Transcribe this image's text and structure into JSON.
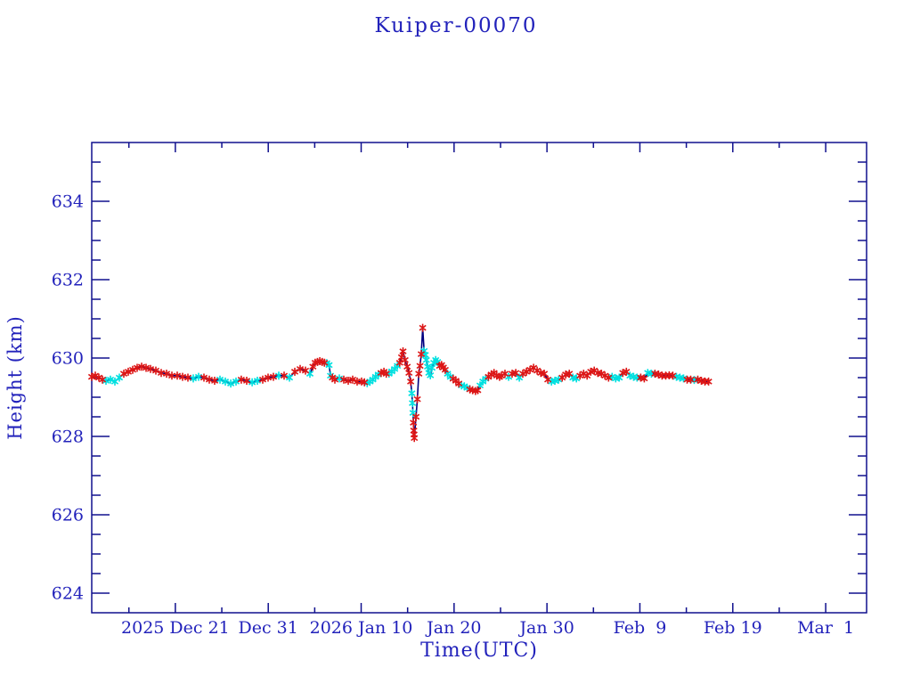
{
  "title": "Kuiper-00070",
  "colors": {
    "text": "#2222bb",
    "axis": "#10108e",
    "line": "#000080",
    "marker_red": "#dc1616",
    "marker_cyan": "#00e0e0",
    "background": "#ffffff"
  },
  "chart_data": {
    "type": "line",
    "title": "Kuiper-00070",
    "xlabel": "Time(UTC)",
    "ylabel": "Height (km)",
    "marker": "asterisk",
    "grid": false,
    "legend": "none",
    "x_axis": {
      "unit": "days since 2025-12-12 (axis left edge)",
      "min": 0,
      "max": 83.4,
      "major_ticks": [
        {
          "day": 9,
          "label": "2025 Dec 21"
        },
        {
          "day": 19,
          "label": "Dec 31"
        },
        {
          "day": 29,
          "label": "2026 Jan 10"
        },
        {
          "day": 39,
          "label": "Jan 20"
        },
        {
          "day": 49,
          "label": "Jan 30"
        },
        {
          "day": 59,
          "label": "Feb  9"
        },
        {
          "day": 69,
          "label": "Feb 19"
        },
        {
          "day": 79,
          "label": "Mar  1"
        }
      ],
      "minor_tick_days": [
        4,
        14,
        24,
        34,
        44,
        54,
        64,
        74
      ]
    },
    "y_axis": {
      "min": 623.5,
      "max": 635.5,
      "major_ticks": [
        624,
        626,
        628,
        630,
        632,
        634
      ],
      "minor_step": 0.5
    },
    "points": [
      [
        0.0,
        629.52,
        "r"
      ],
      [
        0.38,
        629.55,
        "r"
      ],
      [
        0.77,
        629.5,
        "r"
      ],
      [
        1.15,
        629.45,
        "r"
      ],
      [
        1.53,
        629.42,
        "c"
      ],
      [
        2.01,
        629.45,
        "c"
      ],
      [
        2.49,
        629.4,
        "c"
      ],
      [
        2.97,
        629.5,
        "c"
      ],
      [
        3.45,
        629.6,
        "r"
      ],
      [
        3.93,
        629.65,
        "r"
      ],
      [
        4.41,
        629.7,
        "r"
      ],
      [
        4.89,
        629.75,
        "r"
      ],
      [
        5.37,
        629.78,
        "r"
      ],
      [
        5.85,
        629.75,
        "r"
      ],
      [
        6.33,
        629.72,
        "r"
      ],
      [
        6.9,
        629.68,
        "r"
      ],
      [
        7.48,
        629.62,
        "r"
      ],
      [
        8.05,
        629.6,
        "r"
      ],
      [
        8.63,
        629.55,
        "r"
      ],
      [
        9.2,
        629.55,
        "r"
      ],
      [
        9.78,
        629.52,
        "r"
      ],
      [
        10.35,
        629.5,
        "r"
      ],
      [
        10.93,
        629.48,
        "c"
      ],
      [
        11.5,
        629.52,
        "c"
      ],
      [
        12.08,
        629.5,
        "r"
      ],
      [
        12.65,
        629.45,
        "r"
      ],
      [
        13.23,
        629.42,
        "r"
      ],
      [
        13.8,
        629.45,
        "c"
      ],
      [
        14.38,
        629.4,
        "c"
      ],
      [
        14.96,
        629.35,
        "c"
      ],
      [
        15.53,
        629.4,
        "c"
      ],
      [
        16.1,
        629.45,
        "r"
      ],
      [
        16.68,
        629.42,
        "r"
      ],
      [
        17.26,
        629.38,
        "c"
      ],
      [
        17.83,
        629.42,
        "c"
      ],
      [
        18.41,
        629.45,
        "r"
      ],
      [
        18.98,
        629.5,
        "r"
      ],
      [
        19.56,
        629.52,
        "r"
      ],
      [
        20.13,
        629.55,
        "c"
      ],
      [
        20.71,
        629.55,
        "r"
      ],
      [
        21.28,
        629.5,
        "c"
      ],
      [
        21.86,
        629.65,
        "r"
      ],
      [
        22.43,
        629.72,
        "r"
      ],
      [
        23.01,
        629.68,
        "r"
      ],
      [
        23.49,
        629.6,
        "c"
      ],
      [
        23.8,
        629.78,
        "r"
      ],
      [
        24.05,
        629.88,
        "r"
      ],
      [
        24.3,
        629.9,
        "r"
      ],
      [
        24.55,
        629.92,
        "r"
      ],
      [
        24.8,
        629.9,
        "r"
      ],
      [
        25.05,
        629.88,
        "r"
      ],
      [
        25.3,
        629.87,
        "c"
      ],
      [
        25.55,
        629.82,
        "c"
      ],
      [
        25.7,
        629.55,
        "c"
      ],
      [
        25.9,
        629.5,
        "r"
      ],
      [
        26.17,
        629.45,
        "r"
      ],
      [
        26.65,
        629.48,
        "c"
      ],
      [
        27.13,
        629.45,
        "r"
      ],
      [
        27.61,
        629.42,
        "r"
      ],
      [
        28.09,
        629.45,
        "r"
      ],
      [
        28.57,
        629.4,
        "r"
      ],
      [
        29.05,
        629.4,
        "r"
      ],
      [
        29.35,
        629.38,
        "r"
      ],
      [
        29.65,
        629.36,
        "c"
      ],
      [
        29.95,
        629.4,
        "c"
      ],
      [
        30.25,
        629.45,
        "c"
      ],
      [
        30.55,
        629.52,
        "c"
      ],
      [
        30.85,
        629.58,
        "c"
      ],
      [
        31.15,
        629.62,
        "r"
      ],
      [
        31.45,
        629.65,
        "r"
      ],
      [
        31.7,
        629.6,
        "r"
      ],
      [
        32.0,
        629.6,
        "c"
      ],
      [
        32.3,
        629.66,
        "c"
      ],
      [
        32.6,
        629.72,
        "c"
      ],
      [
        32.9,
        629.8,
        "c"
      ],
      [
        33.15,
        629.88,
        "r"
      ],
      [
        33.35,
        630.02,
        "r"
      ],
      [
        33.5,
        630.17,
        "r"
      ],
      [
        33.72,
        629.95,
        "r"
      ],
      [
        33.95,
        629.78,
        "r"
      ],
      [
        34.15,
        629.62,
        "r"
      ],
      [
        34.33,
        629.4,
        "r"
      ],
      [
        34.45,
        629.1,
        "c"
      ],
      [
        34.52,
        628.85,
        "c"
      ],
      [
        34.58,
        628.6,
        "c"
      ],
      [
        34.63,
        628.35,
        "r"
      ],
      [
        34.66,
        628.15,
        "r"
      ],
      [
        34.69,
        628.05,
        "r"
      ],
      [
        34.72,
        627.96,
        "r"
      ],
      [
        34.9,
        628.5,
        "r"
      ],
      [
        35.05,
        628.95,
        "r"
      ],
      [
        35.2,
        629.6,
        "r"
      ],
      [
        35.33,
        629.8,
        "r"
      ],
      [
        35.47,
        630.1,
        "r"
      ],
      [
        35.62,
        630.77,
        "r"
      ],
      [
        35.78,
        630.18,
        "c"
      ],
      [
        35.9,
        630.08,
        "c"
      ],
      [
        36.02,
        629.95,
        "c"
      ],
      [
        36.15,
        629.78,
        "c"
      ],
      [
        36.28,
        629.62,
        "c"
      ],
      [
        36.45,
        629.56,
        "c"
      ],
      [
        36.62,
        629.75,
        "c"
      ],
      [
        36.82,
        629.88,
        "c"
      ],
      [
        37.02,
        629.95,
        "c"
      ],
      [
        37.22,
        629.9,
        "c"
      ],
      [
        37.45,
        629.8,
        "r"
      ],
      [
        37.65,
        629.82,
        "r"
      ],
      [
        37.85,
        629.76,
        "r"
      ],
      [
        38.05,
        629.7,
        "r"
      ],
      [
        38.3,
        629.6,
        "c"
      ],
      [
        38.6,
        629.52,
        "c"
      ],
      [
        38.9,
        629.47,
        "r"
      ],
      [
        39.2,
        629.42,
        "r"
      ],
      [
        39.5,
        629.35,
        "r"
      ],
      [
        39.8,
        629.3,
        "c"
      ],
      [
        40.1,
        629.28,
        "c"
      ],
      [
        40.4,
        629.24,
        "c"
      ],
      [
        40.7,
        629.2,
        "r"
      ],
      [
        41.0,
        629.18,
        "r"
      ],
      [
        41.3,
        629.16,
        "r"
      ],
      [
        41.55,
        629.18,
        "r"
      ],
      [
        41.8,
        629.3,
        "c"
      ],
      [
        42.1,
        629.4,
        "c"
      ],
      [
        42.4,
        629.47,
        "c"
      ],
      [
        42.7,
        629.52,
        "r"
      ],
      [
        43.0,
        629.58,
        "r"
      ],
      [
        43.3,
        629.62,
        "r"
      ],
      [
        43.6,
        629.55,
        "r"
      ],
      [
        43.9,
        629.52,
        "r"
      ],
      [
        44.1,
        629.55,
        "r"
      ],
      [
        44.48,
        629.6,
        "r"
      ],
      [
        44.87,
        629.52,
        "c"
      ],
      [
        45.25,
        629.6,
        "r"
      ],
      [
        45.64,
        629.62,
        "r"
      ],
      [
        46.02,
        629.5,
        "c"
      ],
      [
        46.4,
        629.6,
        "r"
      ],
      [
        46.79,
        629.65,
        "r"
      ],
      [
        47.17,
        629.7,
        "r"
      ],
      [
        47.56,
        629.75,
        "r"
      ],
      [
        47.94,
        629.68,
        "r"
      ],
      [
        48.33,
        629.62,
        "r"
      ],
      [
        48.71,
        629.6,
        "r"
      ],
      [
        49.09,
        629.45,
        "r"
      ],
      [
        49.48,
        629.4,
        "c"
      ],
      [
        49.86,
        629.42,
        "c"
      ],
      [
        50.25,
        629.45,
        "c"
      ],
      [
        50.63,
        629.5,
        "r"
      ],
      [
        51.02,
        629.58,
        "r"
      ],
      [
        51.4,
        629.6,
        "r"
      ],
      [
        51.78,
        629.5,
        "c"
      ],
      [
        52.17,
        629.48,
        "c"
      ],
      [
        52.55,
        629.55,
        "r"
      ],
      [
        52.94,
        629.6,
        "r"
      ],
      [
        53.32,
        629.55,
        "r"
      ],
      [
        53.71,
        629.65,
        "r"
      ],
      [
        54.09,
        629.68,
        "r"
      ],
      [
        54.47,
        629.62,
        "r"
      ],
      [
        54.86,
        629.6,
        "r"
      ],
      [
        55.24,
        629.55,
        "r"
      ],
      [
        55.63,
        629.5,
        "r"
      ],
      [
        56.01,
        629.52,
        "c"
      ],
      [
        56.4,
        629.48,
        "c"
      ],
      [
        56.78,
        629.5,
        "c"
      ],
      [
        57.16,
        629.62,
        "r"
      ],
      [
        57.55,
        629.65,
        "r"
      ],
      [
        57.93,
        629.55,
        "c"
      ],
      [
        58.32,
        629.52,
        "c"
      ],
      [
        58.7,
        629.5,
        "c"
      ],
      [
        59.09,
        629.5,
        "r"
      ],
      [
        59.47,
        629.48,
        "r"
      ],
      [
        59.85,
        629.62,
        "c"
      ],
      [
        60.24,
        629.6,
        "c"
      ],
      [
        60.62,
        629.6,
        "r"
      ],
      [
        61.01,
        629.58,
        "r"
      ],
      [
        61.39,
        629.55,
        "r"
      ],
      [
        61.78,
        629.55,
        "r"
      ],
      [
        62.16,
        629.56,
        "r"
      ],
      [
        62.54,
        629.55,
        "r"
      ],
      [
        62.93,
        629.52,
        "c"
      ],
      [
        63.31,
        629.5,
        "c"
      ],
      [
        63.7,
        629.48,
        "c"
      ],
      [
        64.08,
        629.45,
        "r"
      ],
      [
        64.47,
        629.45,
        "r"
      ],
      [
        64.85,
        629.44,
        "c"
      ],
      [
        65.23,
        629.45,
        "r"
      ],
      [
        65.62,
        629.42,
        "r"
      ],
      [
        66.0,
        629.4,
        "r"
      ],
      [
        66.39,
        629.4,
        "r"
      ]
    ]
  }
}
